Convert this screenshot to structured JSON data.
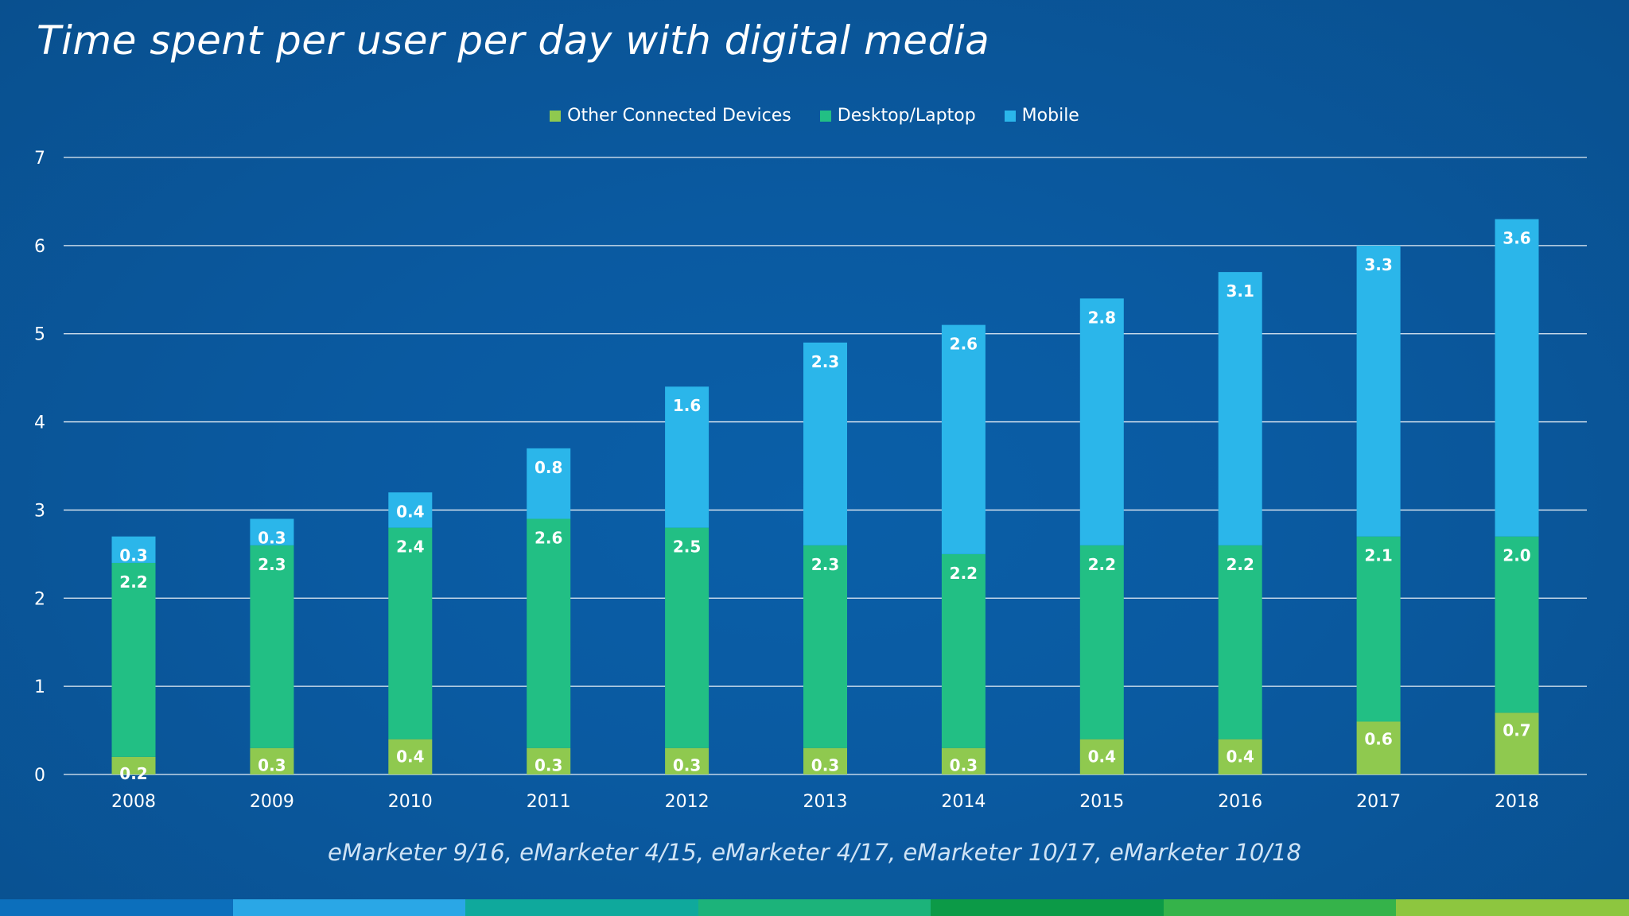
{
  "title": "Time spent per user per day with digital media",
  "source": "eMarketer 9/16, eMarketer 4/15, eMarketer 4/17, eMarketer 10/17, eMarketer 10/18",
  "colors": {
    "other": "#8fc94f",
    "desktop": "#22bf84",
    "mobile": "#2bb6ea",
    "grid": "#ffffff",
    "strip": [
      "#0c6fbc",
      "#2aa7e6",
      "#0fa99c",
      "#1cb37a",
      "#0c9a47",
      "#35b34a",
      "#8dc63f"
    ]
  },
  "legend": [
    {
      "label": "Other Connected Devices",
      "color": "#8fc94f"
    },
    {
      "label": "Desktop/Laptop",
      "color": "#22bf84"
    },
    {
      "label": "Mobile",
      "color": "#2bb6ea"
    }
  ],
  "chart_data": {
    "type": "bar",
    "stacked": true,
    "categories": [
      "2008",
      "2009",
      "2010",
      "2011",
      "2012",
      "2013",
      "2014",
      "2015",
      "2016",
      "2017",
      "2018"
    ],
    "series": [
      {
        "name": "Other Connected Devices",
        "values": [
          0.2,
          0.3,
          0.4,
          0.3,
          0.3,
          0.3,
          0.3,
          0.4,
          0.4,
          0.6,
          0.7
        ],
        "labels": [
          "0.2",
          "0.3",
          "0.4",
          "0.3",
          "0.3",
          "0.3",
          "0.3",
          "0.4",
          "0.4",
          "0.6",
          "0.7"
        ]
      },
      {
        "name": "Desktop/Laptop",
        "values": [
          2.2,
          2.3,
          2.4,
          2.6,
          2.5,
          2.3,
          2.2,
          2.2,
          2.2,
          2.1,
          2.0
        ],
        "labels": [
          "2.2",
          "2.3",
          "2.4",
          "2.6",
          "2.5",
          "2.3",
          "2.2",
          "2.2",
          "2.2",
          "2.1",
          "2.0"
        ]
      },
      {
        "name": "Mobile",
        "values": [
          0.3,
          0.3,
          0.4,
          0.8,
          1.6,
          2.3,
          2.6,
          2.8,
          3.1,
          3.3,
          3.6
        ],
        "labels": [
          "0.3",
          "0.3",
          "0.4",
          "0.8",
          "1.6",
          "2.3",
          "2.6",
          "2.8",
          "3.1",
          "3.3",
          "3.6"
        ]
      }
    ],
    "ylim": [
      0,
      7
    ],
    "yticks": [
      "0",
      "1",
      "2",
      "3",
      "4",
      "5",
      "6",
      "7"
    ],
    "grid": true,
    "legend_position": "top-center",
    "xlabel": "",
    "ylabel": ""
  }
}
